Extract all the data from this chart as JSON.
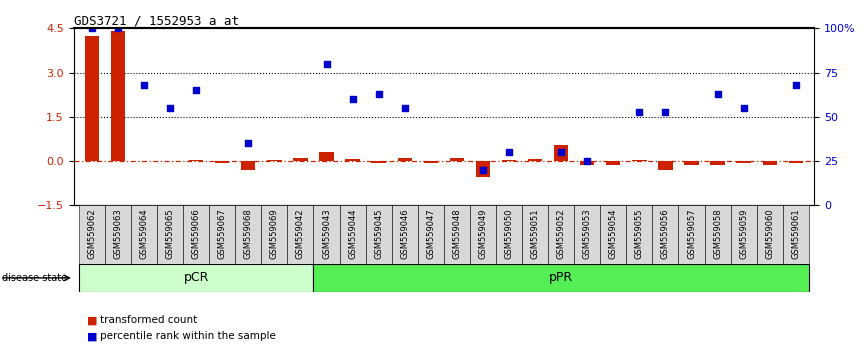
{
  "title": "GDS3721 / 1552953_a_at",
  "samples": [
    "GSM559062",
    "GSM559063",
    "GSM559064",
    "GSM559065",
    "GSM559066",
    "GSM559067",
    "GSM559068",
    "GSM559069",
    "GSM559042",
    "GSM559043",
    "GSM559044",
    "GSM559045",
    "GSM559046",
    "GSM559047",
    "GSM559048",
    "GSM559049",
    "GSM559050",
    "GSM559051",
    "GSM559052",
    "GSM559053",
    "GSM559054",
    "GSM559055",
    "GSM559056",
    "GSM559057",
    "GSM559058",
    "GSM559059",
    "GSM559060",
    "GSM559061"
  ],
  "transformed_count": [
    4.25,
    4.4,
    0.0,
    0.0,
    0.05,
    -0.05,
    -0.3,
    0.05,
    0.12,
    0.3,
    0.08,
    -0.08,
    0.1,
    -0.05,
    0.12,
    -0.55,
    0.05,
    0.08,
    0.55,
    -0.15,
    -0.15,
    0.05,
    -0.3,
    -0.15,
    -0.15,
    -0.05,
    -0.12,
    -0.08
  ],
  "percentile_rank": [
    100,
    100,
    68,
    55,
    65,
    null,
    35,
    null,
    null,
    80,
    60,
    63,
    55,
    null,
    null,
    20,
    30,
    null,
    30,
    25,
    null,
    53,
    53,
    null,
    63,
    55,
    null,
    68
  ],
  "pcr_count": 9,
  "ppr_count": 19,
  "ylim_left": [
    -1.5,
    4.5
  ],
  "ylim_right": [
    0,
    100
  ],
  "yticks_left": [
    -1.5,
    0,
    1.5,
    3.0,
    4.5
  ],
  "yticks_right": [
    0,
    25,
    50,
    75,
    100
  ],
  "hlines": [
    1.5,
    3.0
  ],
  "bar_color": "#cc2200",
  "scatter_color": "#0000cc",
  "pcr_facecolor": "#ccffcc",
  "ppr_facecolor": "#55ee55",
  "tick_label_color_left": "#cc2200",
  "tick_label_color_right": "#0000cc",
  "background_color": "#ffffff",
  "disease_state_label": "disease state",
  "pcr_label": "pCR",
  "ppr_label": "pPR",
  "legend_labels": [
    "transformed count",
    "percentile rank within the sample"
  ]
}
